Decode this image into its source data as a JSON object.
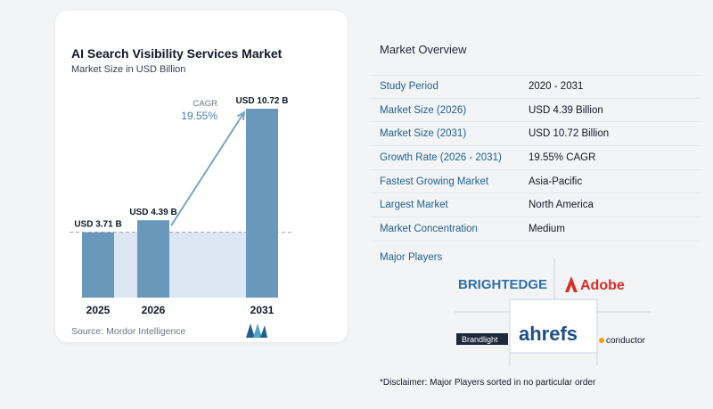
{
  "chart_data": {
    "type": "bar",
    "title": "AI Search Visibility Services Market",
    "subtitle": "Market Size in USD Billion",
    "categories": [
      "2025",
      "2026",
      "2031"
    ],
    "values": [
      3.71,
      4.39,
      10.72
    ],
    "value_labels": [
      "USD 3.71 B",
      "USD 4.39 B",
      "USD 10.72 B"
    ],
    "cagr_label": "CAGR",
    "cagr_value": "19.55%",
    "ylim": [
      0,
      10.72
    ],
    "bar_color": "#6a98ba",
    "shade_color": "#dbe8f3",
    "arrow_color": "#7aa6c8"
  },
  "source": "Source: Mordor Intelligence",
  "overview": {
    "title": "Market Overview",
    "rows": [
      {
        "label": "Study Period",
        "value": "2020 - 2031"
      },
      {
        "label": "Market Size (2026)",
        "value": "USD 4.39 Billion"
      },
      {
        "label": "Market Size (2031)",
        "value": "USD 10.72 Billion"
      },
      {
        "label": "Growth Rate (2026 - 2031)",
        "value": "19.55% CAGR"
      },
      {
        "label": "Fastest Growing Market",
        "value": "Asia-Pacific"
      },
      {
        "label": "Largest Market",
        "value": "North America"
      },
      {
        "label": "Market Concentration",
        "value": "Medium"
      }
    ],
    "players_title": "Major Players",
    "players": [
      "BRIGHTEDGE",
      "Adobe",
      "Brandlight",
      "ahrefs",
      "conductor"
    ],
    "disclaimer": "*Disclaimer: Major Players sorted in no particular order"
  }
}
